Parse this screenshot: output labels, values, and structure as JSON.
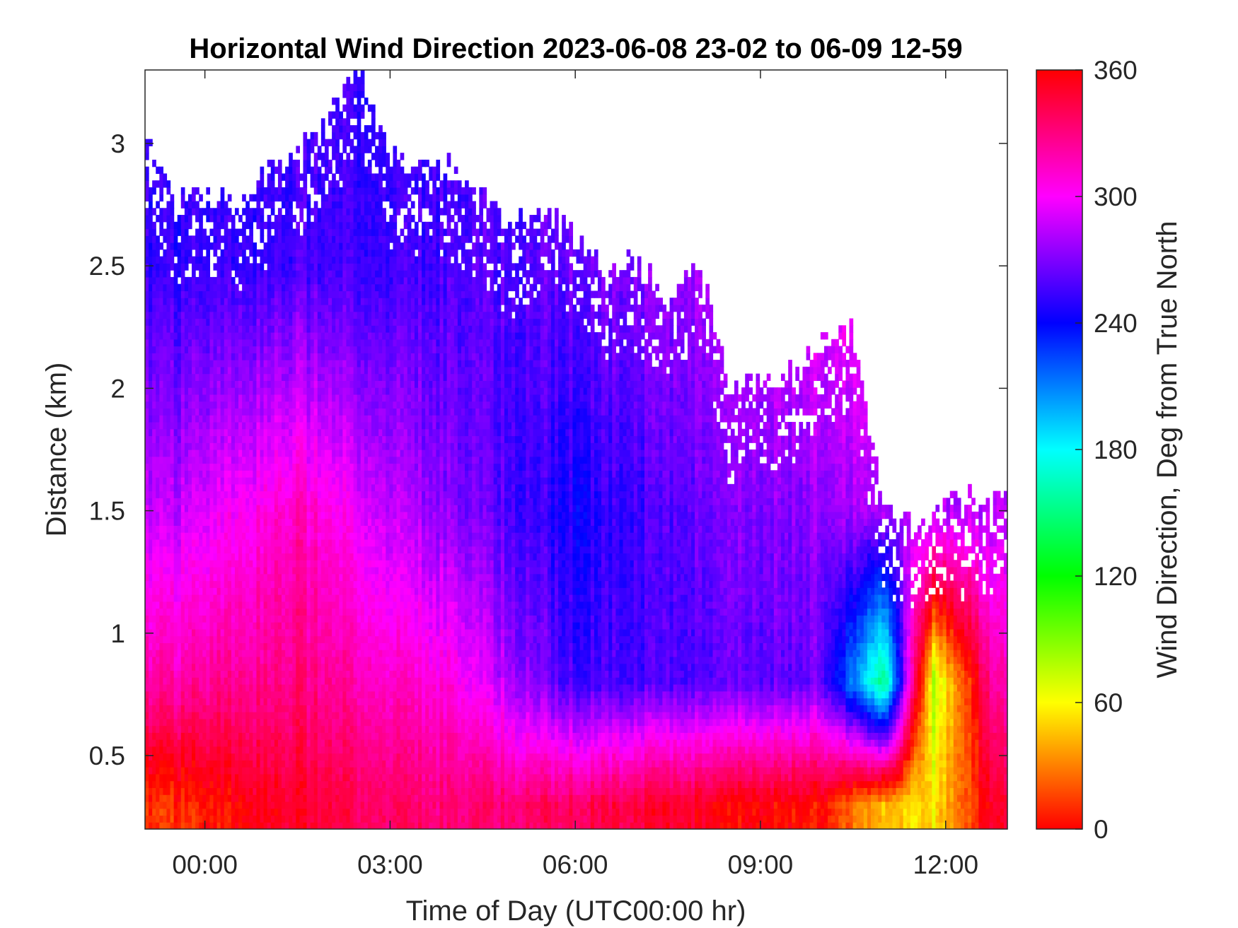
{
  "chart_data": {
    "type": "heatmap",
    "title": "Horizontal Wind Direction 2023-06-08 23-02 to 06-09 12-59",
    "xlabel": "Time of Day (UTC00:00 hr)",
    "ylabel": "Distance (km)",
    "colorbar_label": "Wind Direction, Deg from True North",
    "x_range_hours": [
      -0.97,
      13.0
    ],
    "x_ticks": [
      {
        "value": 0,
        "label": "00:00"
      },
      {
        "value": 3,
        "label": "03:00"
      },
      {
        "value": 6,
        "label": "06:00"
      },
      {
        "value": 9,
        "label": "09:00"
      },
      {
        "value": 12,
        "label": "12:00"
      }
    ],
    "ylim": [
      0.2,
      3.3
    ],
    "y_ticks": [
      {
        "value": 0.5,
        "label": "0.5"
      },
      {
        "value": 1,
        "label": "1"
      },
      {
        "value": 1.5,
        "label": "1.5"
      },
      {
        "value": 2,
        "label": "2"
      },
      {
        "value": 2.5,
        "label": "2.5"
      },
      {
        "value": 3,
        "label": "3"
      }
    ],
    "colorbar_range": [
      0,
      360
    ],
    "colorbar_ticks": [
      {
        "value": 0,
        "label": "0"
      },
      {
        "value": 60,
        "label": "60"
      },
      {
        "value": 120,
        "label": "120"
      },
      {
        "value": 180,
        "label": "180"
      },
      {
        "value": 240,
        "label": "240"
      },
      {
        "value": 300,
        "label": "300"
      },
      {
        "value": 360,
        "label": "360"
      }
    ],
    "colormap": "hsv",
    "grid": false,
    "data_top_km": [
      {
        "t": -0.97,
        "top": 3.1
      },
      {
        "t": -0.5,
        "top": 2.75
      },
      {
        "t": 0.0,
        "top": 2.8
      },
      {
        "t": 0.5,
        "top": 2.72
      },
      {
        "t": 1.0,
        "top": 2.9
      },
      {
        "t": 1.5,
        "top": 2.95
      },
      {
        "t": 2.0,
        "top": 3.1
      },
      {
        "t": 2.5,
        "top": 3.3
      },
      {
        "t": 3.0,
        "top": 2.95
      },
      {
        "t": 3.5,
        "top": 2.92
      },
      {
        "t": 4.0,
        "top": 2.9
      },
      {
        "t": 4.5,
        "top": 2.8
      },
      {
        "t": 5.0,
        "top": 2.65
      },
      {
        "t": 5.5,
        "top": 2.75
      },
      {
        "t": 6.0,
        "top": 2.6
      },
      {
        "t": 6.5,
        "top": 2.45
      },
      {
        "t": 7.0,
        "top": 2.55
      },
      {
        "t": 7.5,
        "top": 2.3
      },
      {
        "t": 8.0,
        "top": 2.55
      },
      {
        "t": 8.5,
        "top": 2.0
      },
      {
        "t": 9.0,
        "top": 2.05
      },
      {
        "t": 9.5,
        "top": 2.05
      },
      {
        "t": 10.0,
        "top": 2.2
      },
      {
        "t": 10.5,
        "top": 2.25
      },
      {
        "t": 11.0,
        "top": 1.5
      },
      {
        "t": 11.5,
        "top": 1.45
      },
      {
        "t": 12.0,
        "top": 1.5
      },
      {
        "t": 12.5,
        "top": 1.55
      },
      {
        "t": 13.0,
        "top": 1.55
      }
    ],
    "direction_profiles_deg": [
      {
        "t": -0.5,
        "dir_at_0_3km": 10,
        "dir_at_0_8km": 320,
        "dir_at_1_5km": 285,
        "dir_at_2_5km": 250
      },
      {
        "t": 1.5,
        "dir_at_0_3km": 350,
        "dir_at_0_8km": 330,
        "dir_at_1_5km": 315,
        "dir_at_2_5km": 255
      },
      {
        "t": 4.0,
        "dir_at_0_3km": 330,
        "dir_at_0_8km": 305,
        "dir_at_1_5km": 270,
        "dir_at_2_5km": 255
      },
      {
        "t": 6.0,
        "dir_at_0_3km": 340,
        "dir_at_0_8km": 255,
        "dir_at_1_5km": 245,
        "dir_at_2_5km": 265
      },
      {
        "t": 8.0,
        "dir_at_0_3km": 355,
        "dir_at_0_8km": 260,
        "dir_at_1_5km": 265,
        "dir_at_2_5km": 280
      },
      {
        "t": 10.0,
        "dir_at_0_3km": 5,
        "dir_at_0_8km": 265,
        "dir_at_1_5km": 275,
        "dir_at_2_5km": 300
      },
      {
        "t": 11.0,
        "dir_at_0_3km": 45,
        "dir_at_0_8km": 150,
        "dir_at_1_5km": 280,
        "dir_at_2_5km": 300
      },
      {
        "t": 11.8,
        "dir_at_0_3km": 55,
        "dir_at_0_8km": 80,
        "dir_at_1_5km": 280,
        "dir_at_2_5km": 300
      },
      {
        "t": 12.8,
        "dir_at_0_3km": 350,
        "dir_at_0_8km": 320,
        "dir_at_1_5km": 285,
        "dir_at_2_5km": 290
      }
    ]
  }
}
